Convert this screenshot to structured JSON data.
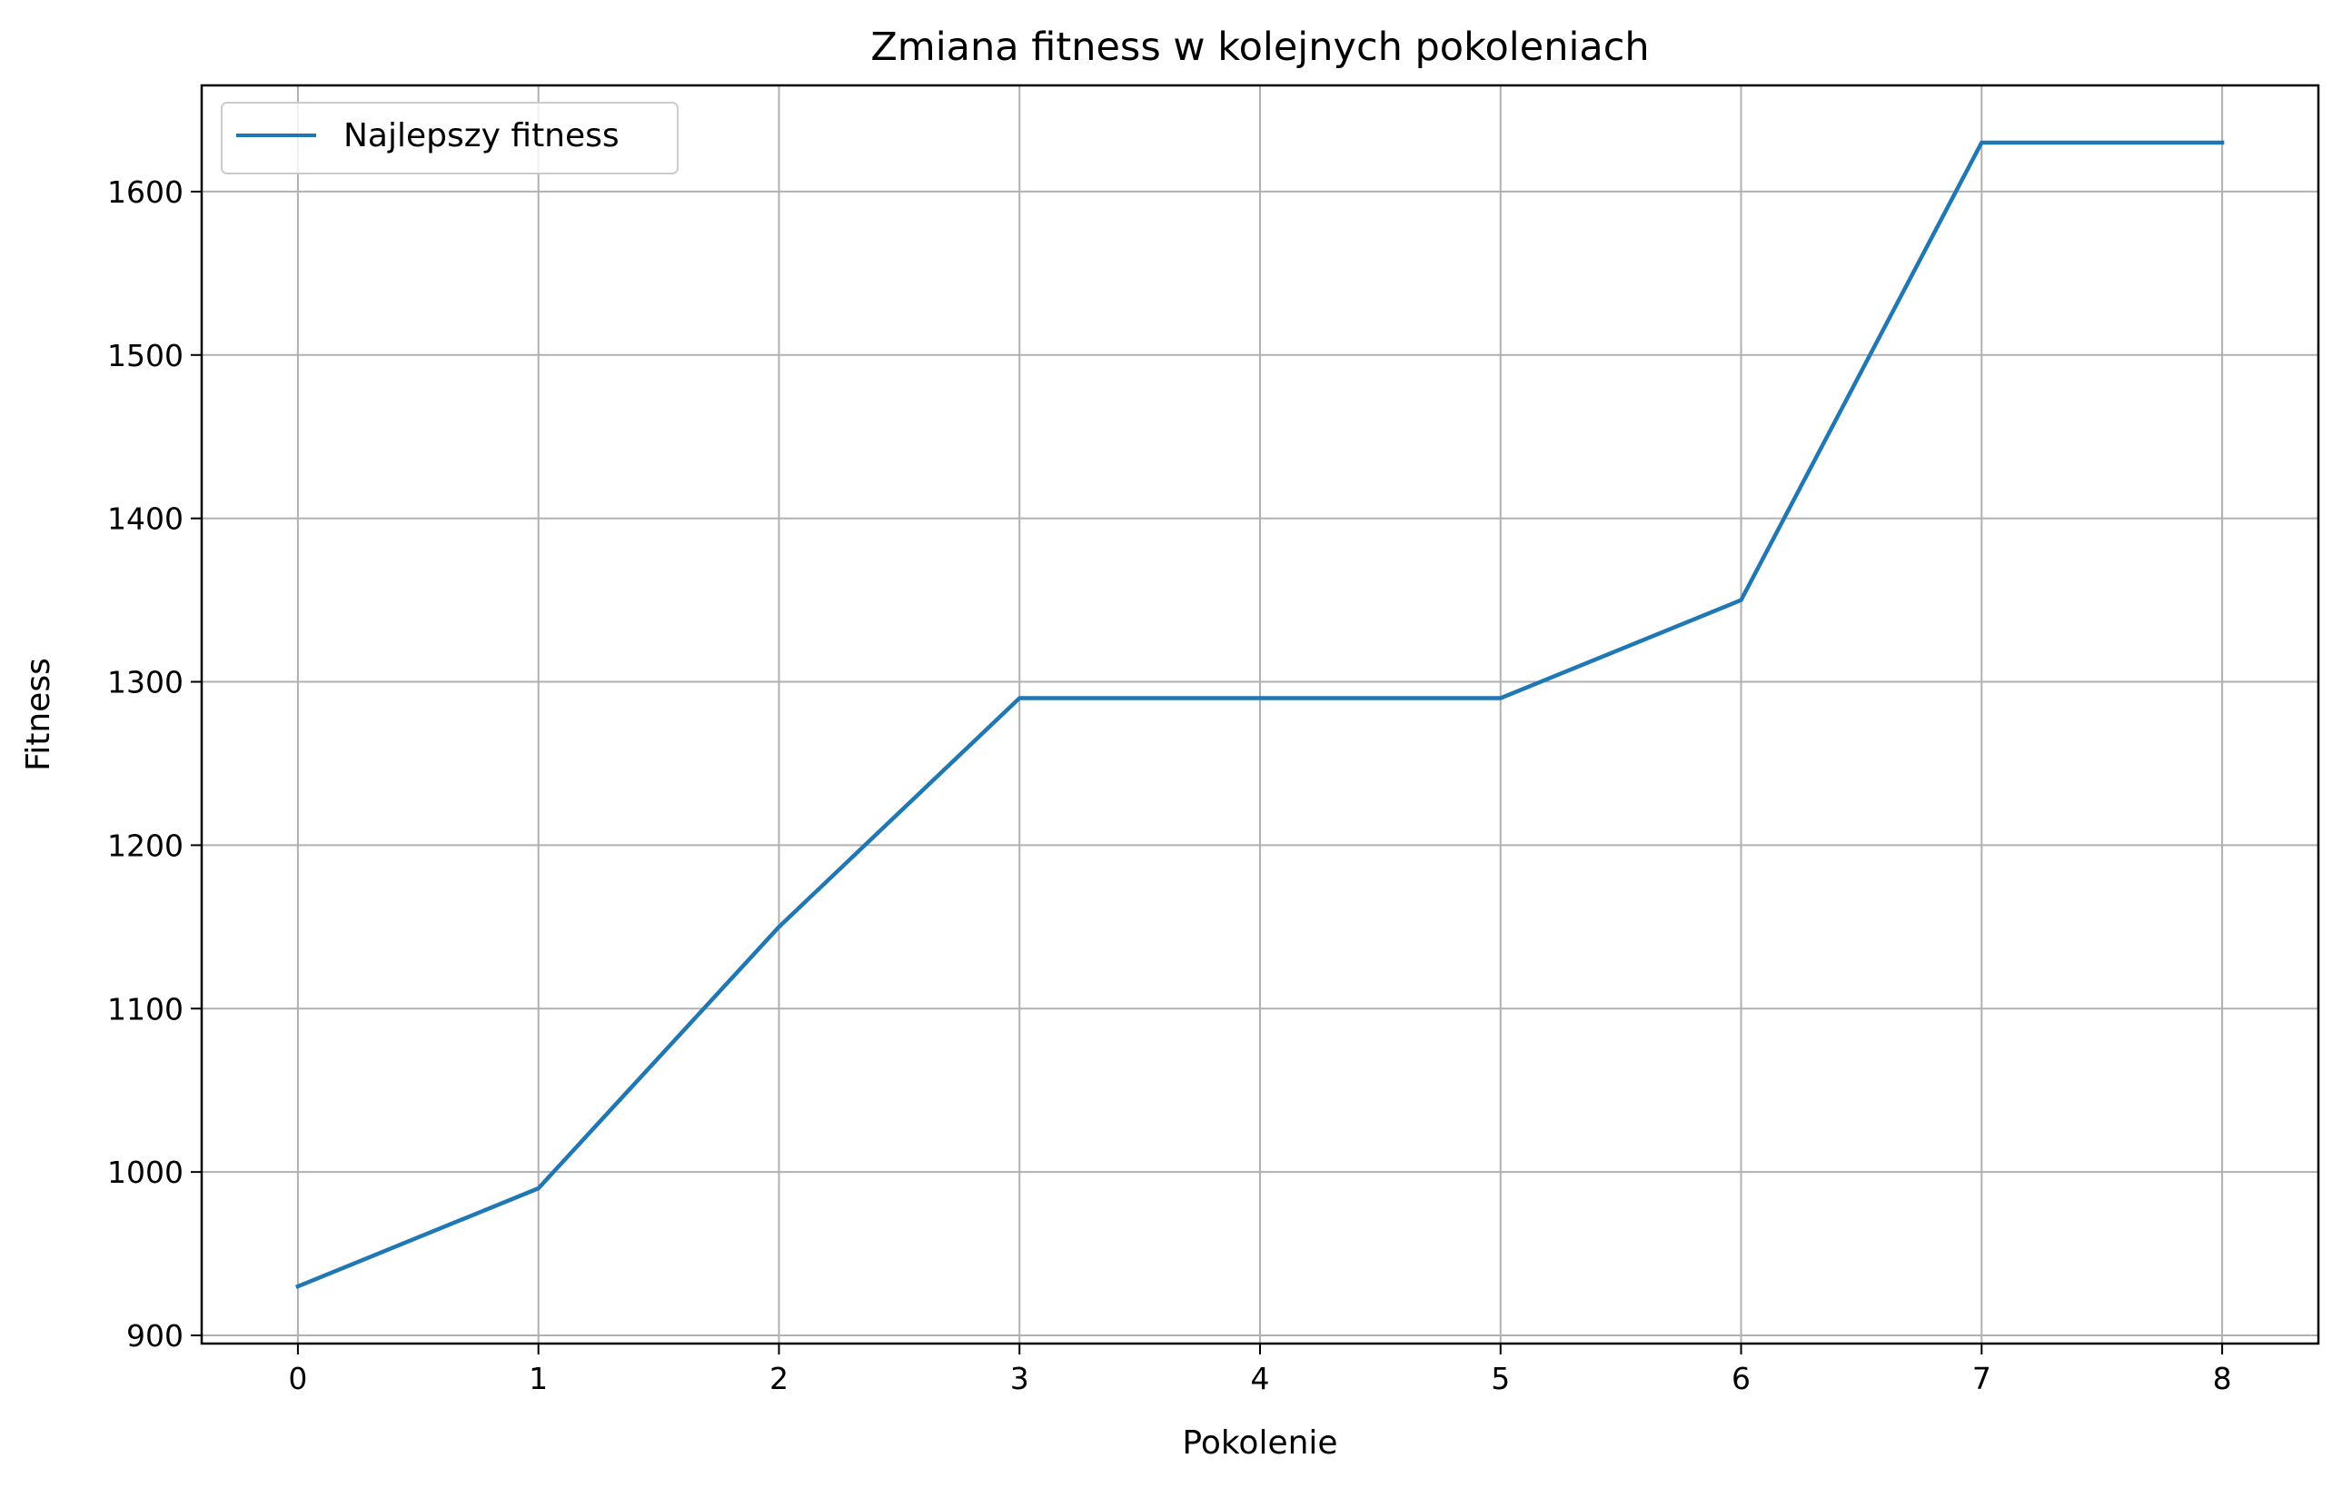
{
  "chart_data": {
    "type": "line",
    "title": "Zmiana fitness w kolejnych pokoleniach",
    "xlabel": "Pokolenie",
    "ylabel": "Fitness",
    "x": [
      0,
      1,
      2,
      3,
      4,
      5,
      6,
      7,
      8
    ],
    "series": [
      {
        "name": "Najlepszy fitness",
        "color": "#1f77b4",
        "values": [
          930,
          990,
          1150,
          1290,
          1290,
          1290,
          1350,
          1630,
          1630
        ]
      }
    ],
    "xlim": [
      -0.4,
      8.4
    ],
    "ylim": [
      895,
      1665
    ],
    "xticks": [
      0,
      1,
      2,
      3,
      4,
      5,
      6,
      7,
      8
    ],
    "xtick_labels": [
      "0",
      "1",
      "2",
      "3",
      "4",
      "5",
      "6",
      "7",
      "8"
    ],
    "yticks": [
      900,
      1000,
      1100,
      1200,
      1300,
      1400,
      1500,
      1600
    ],
    "ytick_labels": [
      "900",
      "1000",
      "1100",
      "1200",
      "1300",
      "1400",
      "1500",
      "1600"
    ],
    "grid": true,
    "legend_position": "upper-left",
    "grid_color": "#b0b0b0",
    "frame_color": "#000000"
  }
}
